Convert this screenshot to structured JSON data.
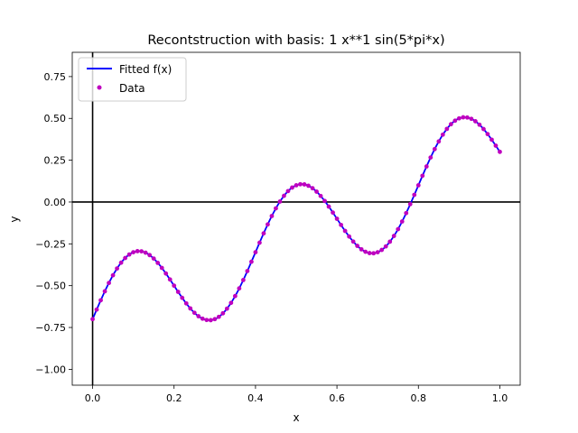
{
  "chart_data": {
    "type": "line",
    "title": "Recontstruction with basis: 1 x**1 sin(5*pi*x)",
    "xlabel": "x",
    "ylabel": "y",
    "xlim": [
      -0.05,
      1.05
    ],
    "ylim": [
      -1.095,
      0.895
    ],
    "xticks": [
      0.0,
      0.2,
      0.4,
      0.6,
      0.8,
      1.0
    ],
    "xtick_labels": [
      "0.0",
      "0.2",
      "0.4",
      "0.6",
      "0.8",
      "1.0"
    ],
    "yticks": [
      -1.0,
      -0.75,
      -0.5,
      -0.25,
      0.0,
      0.25,
      0.5,
      0.75
    ],
    "ytick_labels": [
      "−1.00",
      "−0.75",
      "−0.50",
      "−0.25",
      "0.00",
      "0.25",
      "0.50",
      "0.75"
    ],
    "grid": false,
    "legend_position": "top-left",
    "reference_lines": {
      "horizontal_y": 0,
      "vertical_x": 0
    },
    "colors": {
      "fitted": "#0000ff",
      "data": "#bf00bf",
      "axis_lines": "#000000"
    },
    "series": [
      {
        "name": "Fitted f(x)",
        "kind": "line",
        "formula": "-0.7 + x + 0.3*sin(5*pi*x)",
        "x_range": [
          0,
          1
        ]
      },
      {
        "name": "Data",
        "kind": "scatter",
        "count": 101,
        "x_range": [
          0,
          1
        ],
        "formula": "-0.7 + x + 0.3*sin(5*pi*x)"
      }
    ]
  }
}
